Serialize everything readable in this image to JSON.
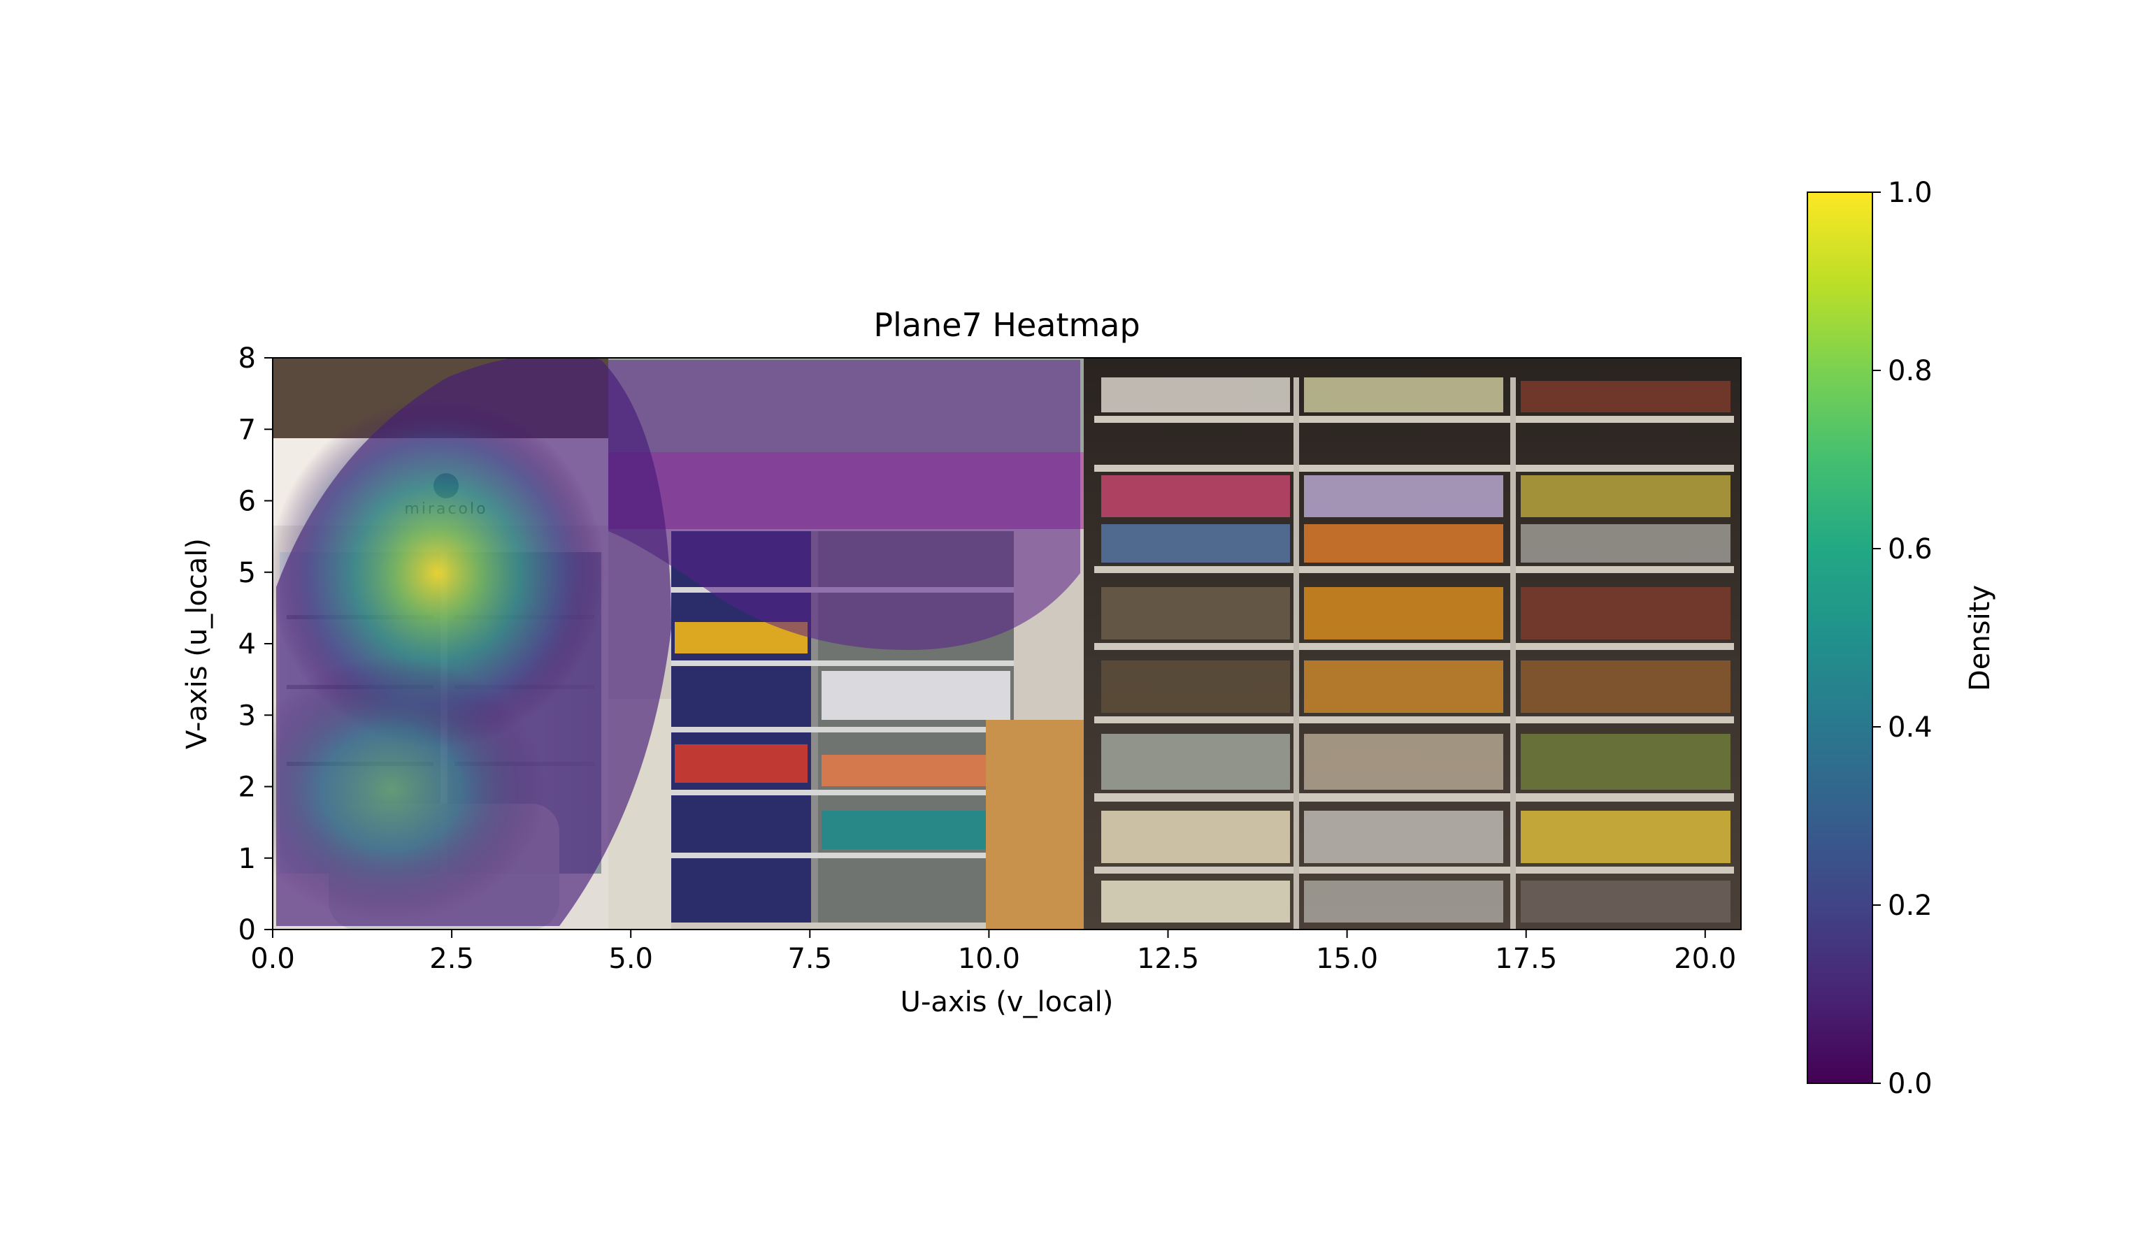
{
  "chart_data": {
    "type": "heatmap",
    "title": "Plane7 Heatmap",
    "xlabel": "U-axis (v_local)",
    "ylabel": "V-axis (u_local)",
    "xlim": [
      0.0,
      20.5
    ],
    "ylim": [
      0,
      8
    ],
    "xticks": [
      0.0,
      2.5,
      5.0,
      7.5,
      10.0,
      12.5,
      15.0,
      17.5,
      20.0
    ],
    "xtick_labels": [
      "0.0",
      "2.5",
      "5.0",
      "7.5",
      "10.0",
      "12.5",
      "15.0",
      "17.5",
      "20.0"
    ],
    "yticks": [
      0,
      1,
      2,
      3,
      4,
      5,
      6,
      7,
      8
    ],
    "ytick_labels": [
      "0",
      "1",
      "2",
      "3",
      "4",
      "5",
      "6",
      "7",
      "8"
    ],
    "background": "photo of store shelves (beverages fridge, snacks and grocery racks)",
    "overlay_extent_x": [
      0.0,
      11.2
    ],
    "density_peaks": [
      {
        "x": 2.1,
        "y": 5.0,
        "value": 0.95
      },
      {
        "x": 1.6,
        "y": 1.8,
        "value": 0.45
      },
      {
        "x": 9.0,
        "y": 5.8,
        "value": 0.1
      }
    ],
    "colorbar": {
      "label": "Density",
      "colormap": "viridis",
      "range": [
        0.0,
        1.0
      ],
      "ticks": [
        0.0,
        0.2,
        0.4,
        0.6,
        0.8,
        1.0
      ],
      "tick_labels": [
        "0.0",
        "0.2",
        "0.4",
        "0.6",
        "0.8",
        "1.0"
      ]
    },
    "grid": false
  },
  "photo_text": {
    "logo_text": "miracolo"
  }
}
